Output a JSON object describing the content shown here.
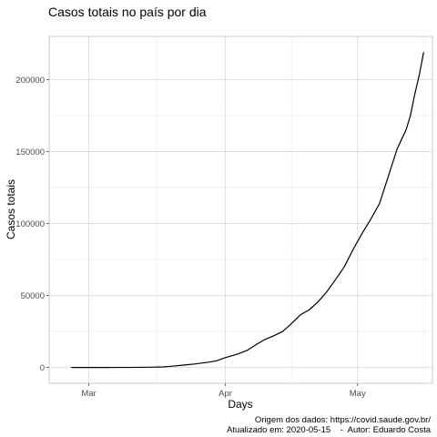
{
  "chart_data": {
    "type": "line",
    "title": "Casos totais no país por dia",
    "xlabel": "Days",
    "ylabel": "Casos totais",
    "caption_line1": "Origem dos dados: https://covid.saude.gov.br/",
    "caption_line2": "Atualizado em: 2020-05-15    -  Autor: Eduardo Costa",
    "x_ticks": [
      {
        "label": "Mar",
        "date": "2020-03-01"
      },
      {
        "label": "Apr",
        "date": "2020-04-01"
      },
      {
        "label": "May",
        "date": "2020-05-01"
      }
    ],
    "y_ticks": [
      0,
      50000,
      100000,
      150000,
      200000
    ],
    "y_tick_labels": [
      "0",
      "50000",
      "100000",
      "150000",
      "200000"
    ],
    "xlim": [
      "2020-02-21",
      "2020-05-18"
    ],
    "ylim": [
      -11000,
      230000
    ],
    "grid": true,
    "series": [
      {
        "color": "#000000",
        "points": [
          {
            "x": "2020-02-26",
            "y": 0
          },
          {
            "x": "2020-03-05",
            "y": 10
          },
          {
            "x": "2020-03-10",
            "y": 40
          },
          {
            "x": "2020-03-15",
            "y": 200
          },
          {
            "x": "2020-03-18",
            "y": 400
          },
          {
            "x": "2020-03-20",
            "y": 900
          },
          {
            "x": "2020-03-22",
            "y": 1500
          },
          {
            "x": "2020-03-25",
            "y": 2400
          },
          {
            "x": "2020-03-28",
            "y": 3600
          },
          {
            "x": "2020-03-30",
            "y": 4600
          },
          {
            "x": "2020-04-01",
            "y": 6800
          },
          {
            "x": "2020-04-04",
            "y": 9500
          },
          {
            "x": "2020-04-06",
            "y": 12000
          },
          {
            "x": "2020-04-08",
            "y": 15900
          },
          {
            "x": "2020-04-10",
            "y": 19500
          },
          {
            "x": "2020-04-12",
            "y": 22000
          },
          {
            "x": "2020-04-14",
            "y": 25000
          },
          {
            "x": "2020-04-16",
            "y": 30500
          },
          {
            "x": "2020-04-18",
            "y": 36500
          },
          {
            "x": "2020-04-20",
            "y": 40000
          },
          {
            "x": "2020-04-22",
            "y": 45500
          },
          {
            "x": "2020-04-24",
            "y": 52500
          },
          {
            "x": "2020-04-26",
            "y": 61000
          },
          {
            "x": "2020-04-28",
            "y": 70000
          },
          {
            "x": "2020-04-30",
            "y": 82000
          },
          {
            "x": "2020-05-02",
            "y": 93000
          },
          {
            "x": "2020-05-04",
            "y": 103000
          },
          {
            "x": "2020-05-06",
            "y": 114000
          },
          {
            "x": "2020-05-08",
            "y": 133000
          },
          {
            "x": "2020-05-10",
            "y": 152000
          },
          {
            "x": "2020-05-12",
            "y": 165000
          },
          {
            "x": "2020-05-13",
            "y": 175000
          },
          {
            "x": "2020-05-14",
            "y": 190000
          },
          {
            "x": "2020-05-15",
            "y": 203000
          },
          {
            "x": "2020-05-16",
            "y": 219000
          }
        ]
      }
    ]
  }
}
